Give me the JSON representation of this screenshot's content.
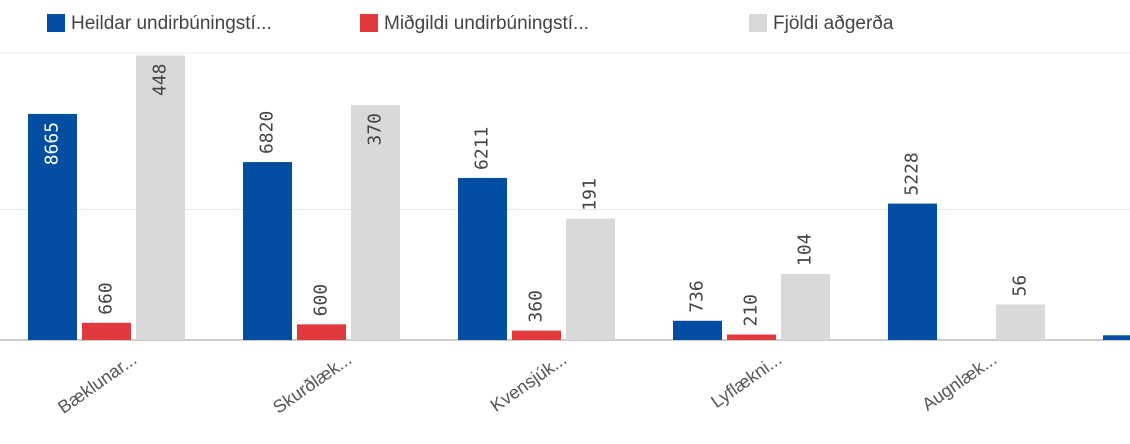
{
  "chart_data": {
    "type": "bar",
    "categories": [
      "Bæklunar...",
      "Skurðlæk...",
      "Kvensjúk...",
      "Lyflækni...",
      "Augnlæk...",
      null
    ],
    "series": [
      {
        "name": "Heildar undirbúningstí...",
        "color": "#034ea2",
        "values": [
          8665,
          6820,
          6211,
          736,
          5228,
          180
        ]
      },
      {
        "name": "Miðgildi undirbúningstí...",
        "color": "#e03a3e",
        "values": [
          660,
          600,
          360,
          210,
          null,
          null
        ]
      },
      {
        "name": "Fjöldi aðgerða",
        "color": "#d9d9d9",
        "axis": "y2",
        "values": [
          448,
          370,
          191,
          104,
          56,
          null
        ]
      }
    ],
    "ylim": [
      0,
      11000
    ],
    "yticks": [
      0,
      5000
    ],
    "y2lim": [
      0,
      452
    ],
    "y2ticks": [
      0,
      200
    ],
    "grid": true,
    "legend": "top"
  }
}
